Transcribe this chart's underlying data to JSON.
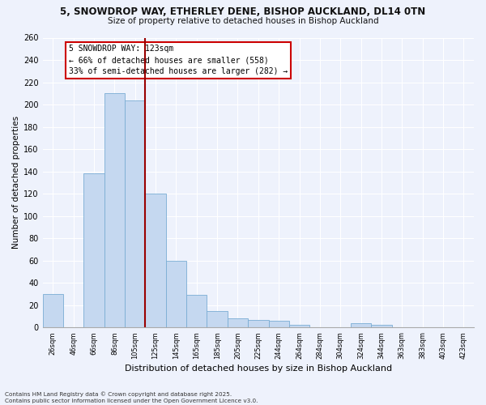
{
  "title_line1": "5, SNOWDROP WAY, ETHERLEY DENE, BISHOP AUCKLAND, DL14 0TN",
  "title_line2": "Size of property relative to detached houses in Bishop Auckland",
  "xlabel": "Distribution of detached houses by size in Bishop Auckland",
  "ylabel": "Number of detached properties",
  "bar_labels": [
    "26sqm",
    "46sqm",
    "66sqm",
    "86sqm",
    "105sqm",
    "125sqm",
    "145sqm",
    "165sqm",
    "185sqm",
    "205sqm",
    "225sqm",
    "244sqm",
    "264sqm",
    "284sqm",
    "304sqm",
    "324sqm",
    "344sqm",
    "363sqm",
    "383sqm",
    "403sqm",
    "423sqm"
  ],
  "bar_values": [
    30,
    0,
    138,
    210,
    204,
    120,
    60,
    29,
    15,
    8,
    7,
    6,
    2,
    0,
    0,
    4,
    2,
    0,
    0,
    0,
    0
  ],
  "bar_color": "#c5d8f0",
  "bar_edge_color": "#7aadd4",
  "vline_x": 5,
  "vline_color": "#990000",
  "ylim": [
    0,
    260
  ],
  "yticks": [
    0,
    20,
    40,
    60,
    80,
    100,
    120,
    140,
    160,
    180,
    200,
    220,
    240,
    260
  ],
  "annotation_title": "5 SNOWDROP WAY: 123sqm",
  "annotation_line2": "← 66% of detached houses are smaller (558)",
  "annotation_line3": "33% of semi-detached houses are larger (282) →",
  "footnote1": "Contains HM Land Registry data © Crown copyright and database right 2025.",
  "footnote2": "Contains public sector information licensed under the Open Government Licence v3.0.",
  "bg_color": "#eef2fc",
  "grid_color": "#ffffff",
  "annotation_box_color": "#ffffff",
  "annotation_box_edge": "#cc0000"
}
